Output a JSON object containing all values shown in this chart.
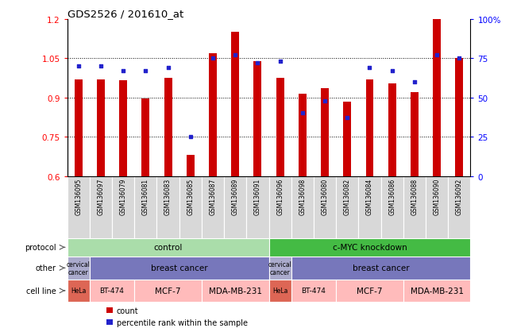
{
  "title": "GDS2526 / 201610_at",
  "samples": [
    "GSM136095",
    "GSM136097",
    "GSM136079",
    "GSM136081",
    "GSM136083",
    "GSM136085",
    "GSM136087",
    "GSM136089",
    "GSM136091",
    "GSM136096",
    "GSM136098",
    "GSM136080",
    "GSM136082",
    "GSM136084",
    "GSM136086",
    "GSM136088",
    "GSM136090",
    "GSM136092"
  ],
  "bar_values": [
    0.97,
    0.97,
    0.965,
    0.895,
    0.975,
    0.68,
    1.07,
    1.15,
    1.04,
    0.975,
    0.915,
    0.935,
    0.885,
    0.97,
    0.955,
    0.92,
    1.2,
    1.05
  ],
  "blue_values_pct": [
    70,
    70,
    67,
    67,
    69,
    25,
    75,
    77,
    72,
    73,
    40,
    48,
    37,
    69,
    67,
    60,
    77,
    75
  ],
  "ylim_left": [
    0.6,
    1.2
  ],
  "ylim_right": [
    0,
    100
  ],
  "yticks_left": [
    0.6,
    0.75,
    0.9,
    1.05,
    1.2
  ],
  "ytick_labels_left": [
    "0.6",
    "0.75",
    "0.9",
    "1.05",
    "1.2"
  ],
  "yticks_right": [
    0,
    25,
    50,
    75,
    100
  ],
  "ytick_labels_right": [
    "0",
    "25",
    "50",
    "75",
    "100%"
  ],
  "bar_color": "#CC0000",
  "blue_color": "#2222CC",
  "ticklabel_area_color": "#DDDDDD",
  "protocol_row": {
    "label": "protocol",
    "groups": [
      {
        "text": "control",
        "start": 0,
        "end": 9,
        "color": "#AADDAA"
      },
      {
        "text": "c-MYC knockdown",
        "start": 9,
        "end": 18,
        "color": "#44BB44"
      }
    ]
  },
  "other_row": {
    "label": "other",
    "groups": [
      {
        "text": "cervical\ncancer",
        "start": 0,
        "end": 1,
        "color": "#AAAACC"
      },
      {
        "text": "breast cancer",
        "start": 1,
        "end": 9,
        "color": "#7777BB"
      },
      {
        "text": "cervical\ncancer",
        "start": 9,
        "end": 10,
        "color": "#AAAACC"
      },
      {
        "text": "breast cancer",
        "start": 10,
        "end": 18,
        "color": "#7777BB"
      }
    ]
  },
  "cellline_row": {
    "label": "cell line",
    "groups": [
      {
        "text": "HeLa",
        "start": 0,
        "end": 1,
        "color": "#DD6655"
      },
      {
        "text": "BT-474",
        "start": 1,
        "end": 3,
        "color": "#FFBBBB"
      },
      {
        "text": "MCF-7",
        "start": 3,
        "end": 6,
        "color": "#FFBBBB"
      },
      {
        "text": "MDA-MB-231",
        "start": 6,
        "end": 9,
        "color": "#FFBBBB"
      },
      {
        "text": "HeLa",
        "start": 9,
        "end": 10,
        "color": "#DD6655"
      },
      {
        "text": "BT-474",
        "start": 10,
        "end": 12,
        "color": "#FFBBBB"
      },
      {
        "text": "MCF-7",
        "start": 12,
        "end": 15,
        "color": "#FFBBBB"
      },
      {
        "text": "MDA-MB-231",
        "start": 15,
        "end": 18,
        "color": "#FFBBBB"
      }
    ]
  },
  "legend_items": [
    {
      "label": "count",
      "color": "#CC0000"
    },
    {
      "label": "percentile rank within the sample",
      "color": "#2222CC"
    }
  ]
}
